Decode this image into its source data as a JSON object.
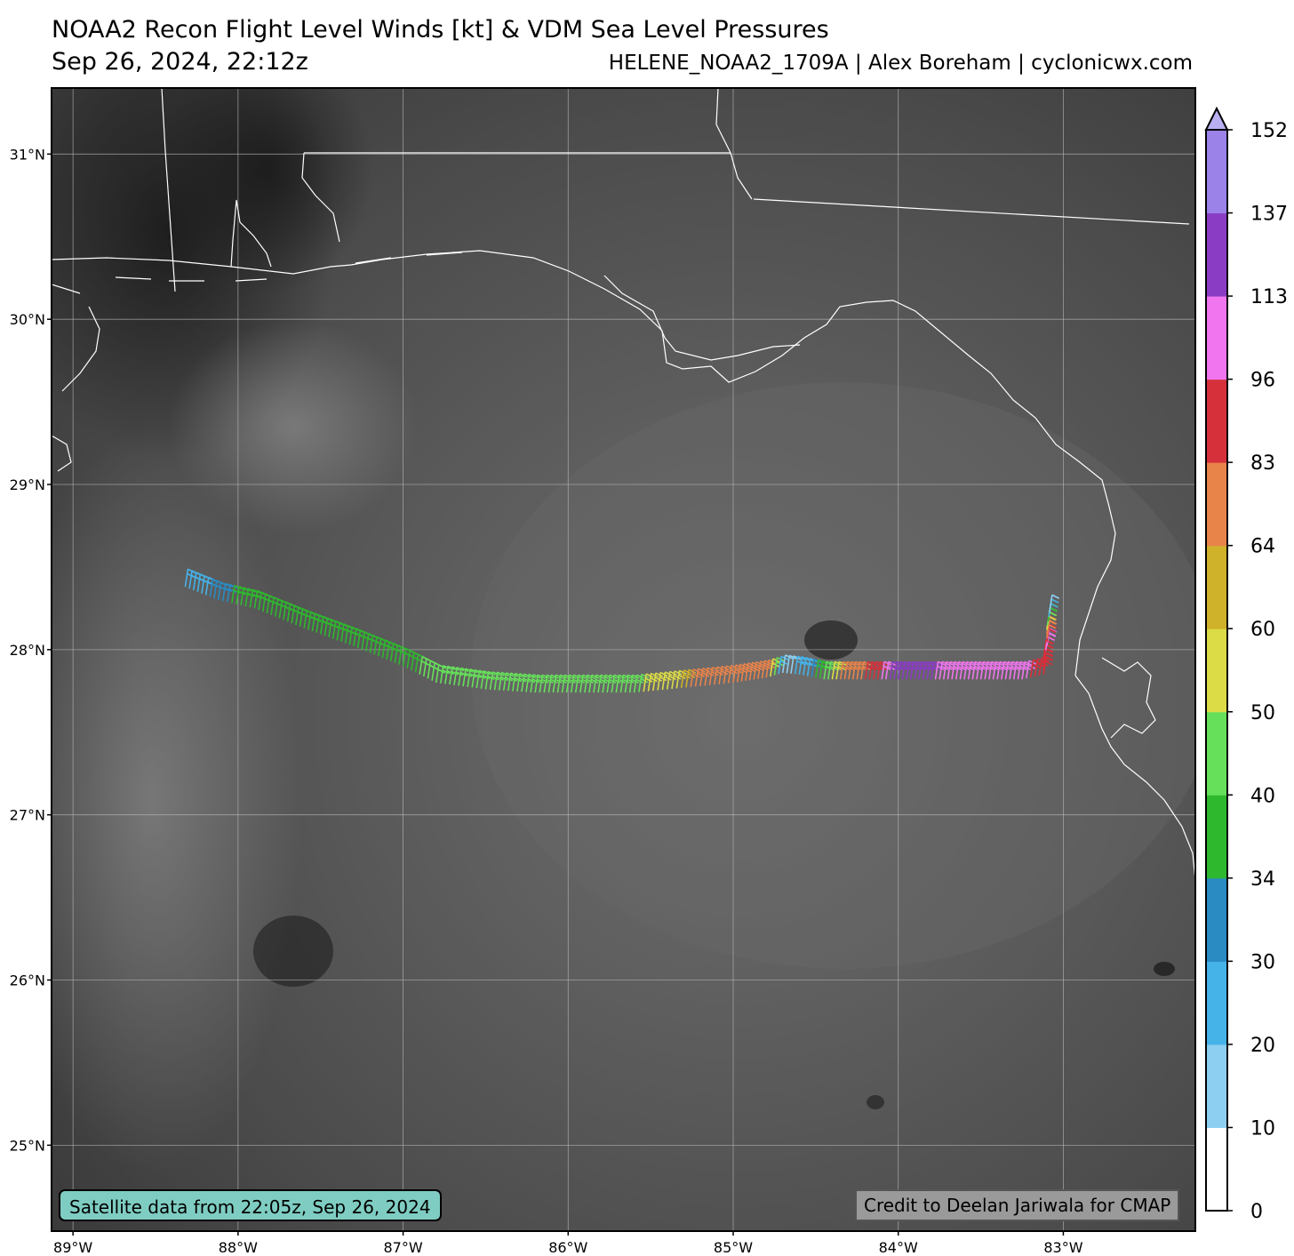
{
  "header": {
    "title": "NOAA2 Recon Flight Level Winds [kt] & VDM Sea Level Pressures",
    "datetime": "Sep 26, 2024, 22:12z",
    "source_credit": "HELENE_NOAA2_1709A | Alex Boreham | cyclonicwx.com"
  },
  "map": {
    "lat_labels": [
      "31°N",
      "30°N",
      "29°N",
      "28°N",
      "27°N",
      "26°N",
      "25°N"
    ],
    "lon_labels": [
      "89°W",
      "88°W",
      "87°W",
      "86°W",
      "85°W",
      "84°W",
      "83°W"
    ],
    "lat_values": [
      31,
      30,
      29,
      28,
      27,
      26,
      25
    ],
    "lon_values": [
      -89,
      -88,
      -87,
      -86,
      -85,
      -84,
      -83
    ],
    "extent": {
      "lon_min": -89.13,
      "lon_max": -82.2,
      "lat_min": 24.48,
      "lat_max": 31.4
    },
    "satellite_note": "Satellite data from 22:05z, Sep 26, 2024",
    "credit_note": "Credit to Deelan Jariwala for CMAP"
  },
  "colorbar": {
    "unit": "kt",
    "ticks": [
      "0",
      "10",
      "20",
      "30",
      "34",
      "40",
      "50",
      "60",
      "64",
      "83",
      "96",
      "113",
      "137",
      "152"
    ],
    "segments": [
      {
        "from": 0,
        "to": 10,
        "color": "#ffffff"
      },
      {
        "from": 10,
        "to": 20,
        "color": "#8ccff0"
      },
      {
        "from": 20,
        "to": 30,
        "color": "#45b2e8"
      },
      {
        "from": 30,
        "to": 34,
        "color": "#2a8ac2"
      },
      {
        "from": 34,
        "to": 40,
        "color": "#2eb82e"
      },
      {
        "from": 40,
        "to": 50,
        "color": "#66e05a"
      },
      {
        "from": 50,
        "to": 60,
        "color": "#dcdc46"
      },
      {
        "from": 60,
        "to": 64,
        "color": "#cfb12a"
      },
      {
        "from": 64,
        "to": 83,
        "color": "#e8834a"
      },
      {
        "from": 83,
        "to": 96,
        "color": "#d6303a"
      },
      {
        "from": 96,
        "to": 113,
        "color": "#f075ee"
      },
      {
        "from": 113,
        "to": 137,
        "color": "#8a3cc4"
      },
      {
        "from": 137,
        "to": 152,
        "color": "#9a82e8"
      }
    ],
    "extend_color": "#b8b0f0"
  },
  "flight_track": [
    {
      "lon": -88.32,
      "lat": 28.38,
      "wind": 25
    },
    {
      "lon": -88.12,
      "lat": 28.3,
      "wind": 32
    },
    {
      "lon": -87.9,
      "lat": 28.25,
      "wind": 38
    },
    {
      "lon": -87.6,
      "lat": 28.13,
      "wind": 39
    },
    {
      "lon": -87.3,
      "lat": 28.02,
      "wind": 39
    },
    {
      "lon": -87.0,
      "lat": 27.9,
      "wind": 38
    },
    {
      "lon": -86.8,
      "lat": 27.8,
      "wind": 42
    },
    {
      "lon": -86.5,
      "lat": 27.76,
      "wind": 43
    },
    {
      "lon": -86.2,
      "lat": 27.74,
      "wind": 45
    },
    {
      "lon": -85.9,
      "lat": 27.74,
      "wind": 46
    },
    {
      "lon": -85.6,
      "lat": 27.74,
      "wind": 48
    },
    {
      "lon": -85.4,
      "lat": 27.76,
      "wind": 55
    },
    {
      "lon": -85.2,
      "lat": 27.78,
      "wind": 70
    },
    {
      "lon": -85.0,
      "lat": 27.8,
      "wind": 72
    },
    {
      "lon": -84.8,
      "lat": 27.83,
      "wind": 66
    },
    {
      "lon": -84.7,
      "lat": 27.86,
      "wind": 15
    },
    {
      "lon": -84.6,
      "lat": 27.85,
      "wind": 22
    },
    {
      "lon": -84.45,
      "lat": 27.82,
      "wind": 42
    },
    {
      "lon": -84.3,
      "lat": 27.82,
      "wind": 75
    },
    {
      "lon": -84.15,
      "lat": 27.82,
      "wind": 90
    },
    {
      "lon": -84.0,
      "lat": 27.82,
      "wind": 125
    },
    {
      "lon": -83.85,
      "lat": 27.82,
      "wind": 118
    },
    {
      "lon": -83.7,
      "lat": 27.82,
      "wind": 105
    },
    {
      "lon": -83.55,
      "lat": 27.82,
      "wind": 100
    },
    {
      "lon": -83.4,
      "lat": 27.82,
      "wind": 105
    },
    {
      "lon": -83.25,
      "lat": 27.82,
      "wind": 98
    },
    {
      "lon": -83.12,
      "lat": 27.85,
      "wind": 90
    },
    {
      "lon": -83.12,
      "lat": 27.95,
      "wind": 92
    },
    {
      "lon": -83.1,
      "lat": 28.02,
      "wind": 100
    },
    {
      "lon": -83.1,
      "lat": 28.12,
      "wind": 55
    },
    {
      "lon": -83.08,
      "lat": 28.25,
      "wind": 8
    }
  ]
}
